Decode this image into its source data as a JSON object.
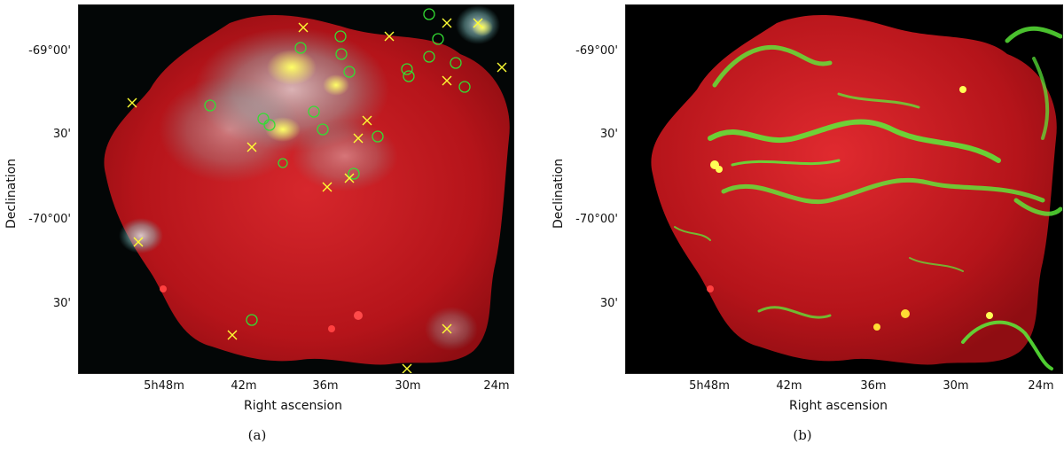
{
  "figure": {
    "panels": [
      {
        "id": "a",
        "caption": "(a)",
        "xlabel": "Right ascension",
        "ylabel": "Declination",
        "xticks": [
          "5h48m",
          "42m",
          "36m",
          "30m",
          "24m"
        ],
        "yticks": [
          "-69°00'",
          "30'",
          "-70°00'",
          "30'"
        ]
      },
      {
        "id": "b",
        "caption": "(b)",
        "xlabel": "Right ascension",
        "ylabel": "Declination",
        "xticks": [
          "5h48m",
          "42m",
          "36m",
          "30m",
          "24m"
        ],
        "yticks": [
          "-69°00'",
          "30'",
          "-70°00'",
          "30'"
        ]
      }
    ],
    "colors": {
      "background_sky": "#000000",
      "map_red": "#c8161c",
      "cyan_emission": "#7fd6d6",
      "green_filaments": "#5cf03a",
      "marker_circle": "#33dd33",
      "marker_cross": "#ffff33"
    },
    "marker_legend_note": ""
  }
}
